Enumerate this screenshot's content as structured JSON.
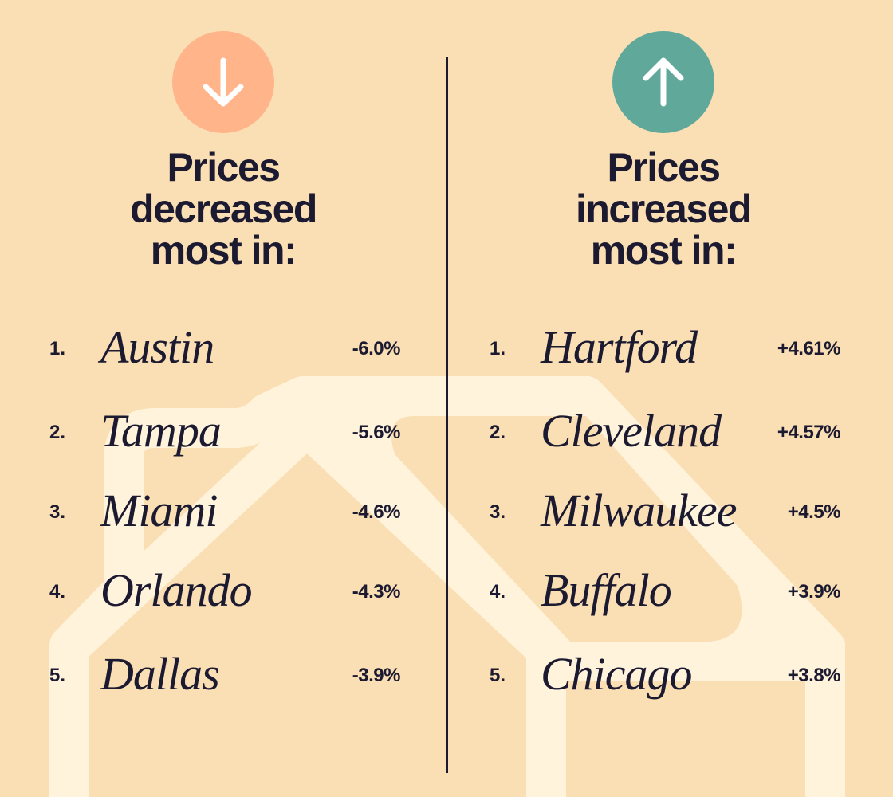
{
  "colors": {
    "background": "#fadeb4",
    "text": "#1b1a30",
    "watermark": "#fff3dc",
    "decrease": "#ffb48a",
    "increase": "#5fa89a"
  },
  "decreased": {
    "icon": "arrow-down-icon",
    "heading": [
      "Prices",
      "decreased",
      "most in:"
    ],
    "items": [
      {
        "rank": "1.",
        "city": "Austin",
        "change": "-6.0%"
      },
      {
        "rank": "2.",
        "city": "Tampa",
        "change": "-5.6%"
      },
      {
        "rank": "3.",
        "city": "Miami",
        "change": "-4.6%"
      },
      {
        "rank": "4.",
        "city": "Orlando",
        "change": "-4.3%"
      },
      {
        "rank": "5.",
        "city": "Dallas",
        "change": "-3.9%"
      }
    ]
  },
  "increased": {
    "icon": "arrow-up-icon",
    "heading": [
      "Prices",
      "increased",
      "most in:"
    ],
    "items": [
      {
        "rank": "1.",
        "city": "Hartford",
        "change": "+4.61%"
      },
      {
        "rank": "2.",
        "city": "Cleveland",
        "change": "+4.57%"
      },
      {
        "rank": "3.",
        "city": "Milwaukee",
        "change": "+4.5%"
      },
      {
        "rank": "4.",
        "city": "Buffalo",
        "change": "+3.9%"
      },
      {
        "rank": "5.",
        "city": "Chicago",
        "change": "+3.8%"
      }
    ]
  }
}
